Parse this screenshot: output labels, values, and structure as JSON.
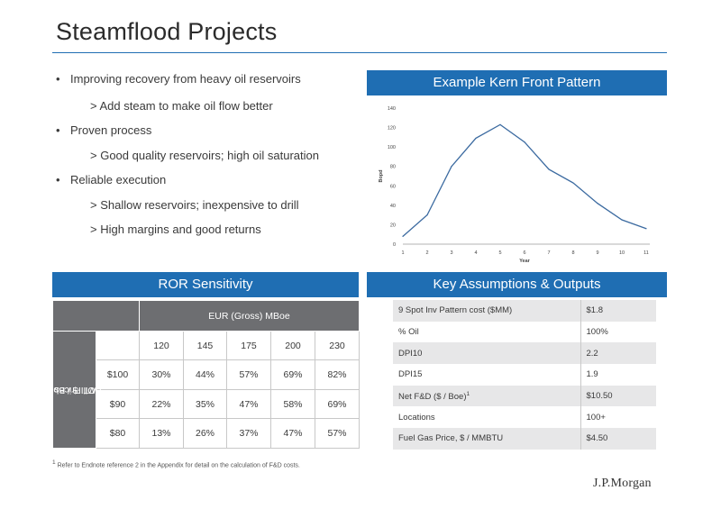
{
  "title": "Steamflood Projects",
  "bullets": [
    {
      "level": 1,
      "text": "Improving recovery from heavy oil reservoirs"
    },
    {
      "level": 2,
      "text": "> Add steam to make oil flow better"
    },
    {
      "level": 1,
      "text": "Proven process"
    },
    {
      "level": 2,
      "text": "> Good quality reservoirs; high oil saturation"
    },
    {
      "level": 1,
      "text": "Reliable execution"
    },
    {
      "level": 2,
      "text": "> Shallow reservoirs; inexpensive to drill"
    },
    {
      "level": 2,
      "text": "> High margins and good returns"
    }
  ],
  "bullet_glyph": "•",
  "chart_banner": "Example Kern Front Pattern",
  "chart_data": {
    "type": "line",
    "title": "",
    "xlabel": "Year",
    "ylabel": "Bopd",
    "x": [
      1,
      2,
      3,
      4,
      5,
      6,
      7,
      8,
      9,
      10,
      11
    ],
    "series": [
      {
        "values": [
          8,
          30,
          80,
          109,
          123,
          105,
          77,
          63,
          42,
          25,
          16
        ]
      }
    ],
    "xlim": [
      1,
      11
    ],
    "ylim": [
      0,
      140
    ],
    "yticks": [
      0,
      20,
      40,
      60,
      80,
      100,
      120,
      140
    ],
    "xticks": [
      1,
      2,
      3,
      4,
      5,
      6,
      7,
      8,
      9,
      10,
      11
    ],
    "line_color": "#3b6aa0",
    "grid": false,
    "legend": "none"
  },
  "ror": {
    "banner": "ROR Sensitivity",
    "eur_label": "EUR (Gross) MBoe",
    "oil_label_line1": "Oil Prices",
    "oil_label_line2": "(WTI $ / Bbl)",
    "columns": [
      "120",
      "145",
      "175",
      "200",
      "230"
    ],
    "rows": [
      {
        "price": "$100",
        "values": [
          "30%",
          "44%",
          "57%",
          "69%",
          "82%"
        ]
      },
      {
        "price": "$90",
        "values": [
          "22%",
          "35%",
          "47%",
          "58%",
          "69%"
        ]
      },
      {
        "price": "$80",
        "values": [
          "13%",
          "26%",
          "37%",
          "47%",
          "57%"
        ]
      }
    ]
  },
  "assumptions": {
    "banner": "Key Assumptions & Outputs",
    "rows": [
      {
        "label": "9 Spot Inv Pattern cost ($MM)",
        "sup": "",
        "value": "$1.8"
      },
      {
        "label": "% Oil",
        "sup": "",
        "value": "100%"
      },
      {
        "label": "DPI10",
        "sup": "",
        "value": "2.2"
      },
      {
        "label": "DPI15",
        "sup": "",
        "value": "1.9"
      },
      {
        "label": "Net F&D ($ / Boe)",
        "sup": "1",
        "value": "$10.50"
      },
      {
        "label": "Locations",
        "sup": "",
        "value": "100+"
      },
      {
        "label": "Fuel Gas Price, $ / MMBTU",
        "sup": "",
        "value": "$4.50"
      }
    ]
  },
  "footnote": {
    "mark": "1",
    "text": "Refer to Endnote reference 2 in the Appendix for detail on the calculation of F&D costs."
  },
  "logo_text": "J.P.Morgan",
  "colors": {
    "accent_blue": "#1f6eb3",
    "header_gray": "#6d6e71",
    "row_shade": "#e7e7e8"
  }
}
